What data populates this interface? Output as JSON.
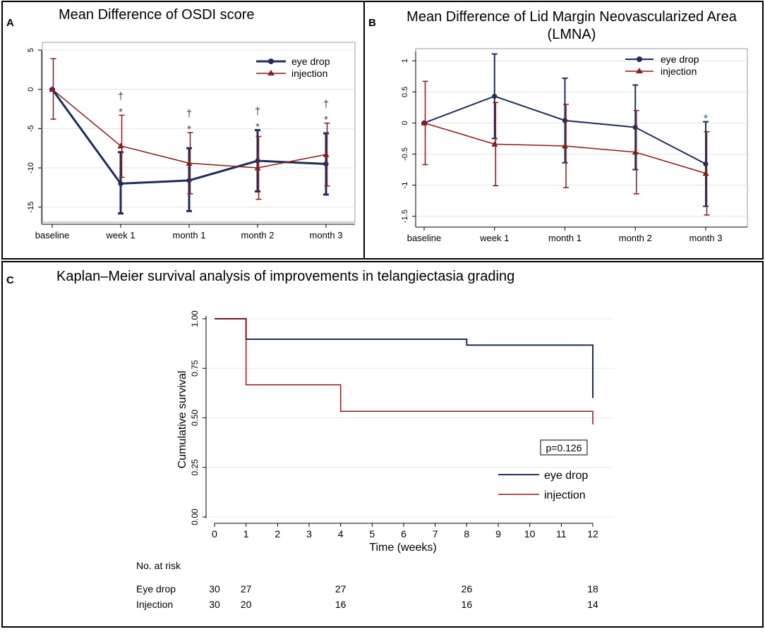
{
  "colors": {
    "eye_drop": "#1f2d5c",
    "injection": "#8b1a1a",
    "asterisk_blue": "#2a4aa0"
  },
  "panels": {
    "a_letter": "A",
    "b_letter": "B",
    "c_letter": "C",
    "footnote_dagger": "†",
    "footnote_star": "*"
  },
  "risk_table": {
    "heading": "No. at risk",
    "rows": [
      {
        "label": "Eye drop",
        "values": [
          "30",
          "27",
          "27",
          "26",
          "18"
        ]
      },
      {
        "label": "Injection",
        "values": [
          "30",
          "20",
          "16",
          "16",
          "14"
        ]
      }
    ]
  },
  "chart_data": [
    {
      "type": "line",
      "panel": "A",
      "title": "Mean Difference of OSDI score",
      "categories": [
        "baseline",
        "week 1",
        "month 1",
        "month 2",
        "month 3"
      ],
      "ylim": [
        -17,
        5
      ],
      "yticks": [
        "5",
        "0",
        "-5",
        "-10",
        "-15"
      ],
      "ytick_values": [
        5,
        0,
        -5,
        -10,
        -15
      ],
      "series": [
        {
          "name": "eye drop",
          "values": [
            0,
            -12,
            -11.6,
            -9.1,
            -9.5
          ],
          "lower": [
            0,
            -15.8,
            -15.5,
            -13.0,
            -13.4
          ],
          "upper": [
            0,
            -8.0,
            -7.5,
            -5.2,
            -5.6
          ]
        },
        {
          "name": "injection",
          "values": [
            0,
            -7.2,
            -9.4,
            -10.0,
            -8.3
          ],
          "lower": [
            -3.8,
            -11.2,
            -13.3,
            -14.0,
            -12.3
          ],
          "upper": [
            3.9,
            -3.3,
            -5.5,
            -6.0,
            -4.3
          ]
        }
      ],
      "markers": [
        {
          "index": 1,
          "symbols": [
            "†",
            "*"
          ]
        },
        {
          "index": 2,
          "symbols": [
            "†",
            "*"
          ]
        },
        {
          "index": 3,
          "symbols": [
            "†",
            "*"
          ]
        },
        {
          "index": 4,
          "symbols": [
            "†",
            "*"
          ]
        }
      ]
    },
    {
      "type": "line",
      "panel": "B",
      "title": "Mean Difference of Lid Margin Neovascularized Area",
      "title_line2": "(LMNA)",
      "categories": [
        "baseline",
        "week 1",
        "month 1",
        "month 2",
        "month 3"
      ],
      "ylim": [
        -1.55,
        1.15
      ],
      "yticks": [
        "1",
        "0.5",
        "0",
        "-0.5",
        "-1",
        "-1.5"
      ],
      "ytick_values": [
        1,
        0.5,
        0,
        -0.5,
        -1,
        -1.5
      ],
      "series": [
        {
          "name": "eye drop",
          "values": [
            0,
            0.43,
            0.04,
            -0.07,
            -0.66
          ],
          "lower": [
            0,
            -0.25,
            -0.64,
            -0.75,
            -1.34
          ],
          "upper": [
            0,
            1.11,
            0.72,
            0.61,
            0.02
          ]
        },
        {
          "name": "injection",
          "values": [
            0,
            -0.34,
            -0.37,
            -0.47,
            -0.81
          ],
          "lower": [
            -0.67,
            -1.01,
            -1.04,
            -1.14,
            -1.48
          ],
          "upper": [
            0.67,
            0.33,
            0.3,
            0.2,
            -0.14
          ]
        }
      ],
      "markers": [
        {
          "index": 4,
          "symbols": [
            "*"
          ]
        }
      ]
    },
    {
      "type": "step",
      "panel": "C",
      "title": "Kaplan–Meier survival analysis of improvements in telangiectasia grading",
      "xlabel": "Time (weeks)",
      "ylabel": "Cumulative survival",
      "xlim": [
        0,
        12
      ],
      "ylim": [
        0,
        1
      ],
      "xticks": [
        "0",
        "1",
        "2",
        "3",
        "4",
        "5",
        "6",
        "7",
        "8",
        "9",
        "10",
        "11",
        "12"
      ],
      "yticks": [
        "0.00",
        "0.25",
        "0.50",
        "0.75",
        "1.00"
      ],
      "ytick_values": [
        0,
        0.25,
        0.5,
        0.75,
        1.0
      ],
      "annotation": "p=0.126",
      "series": [
        {
          "name": "eye drop",
          "steps": [
            [
              0,
              1.0
            ],
            [
              1,
              0.897
            ],
            [
              8,
              0.867
            ],
            [
              12,
              0.6
            ]
          ]
        },
        {
          "name": "injection",
          "steps": [
            [
              0,
              1.0
            ],
            [
              1,
              0.667
            ],
            [
              4,
              0.533
            ],
            [
              12,
              0.467
            ]
          ]
        }
      ]
    }
  ]
}
